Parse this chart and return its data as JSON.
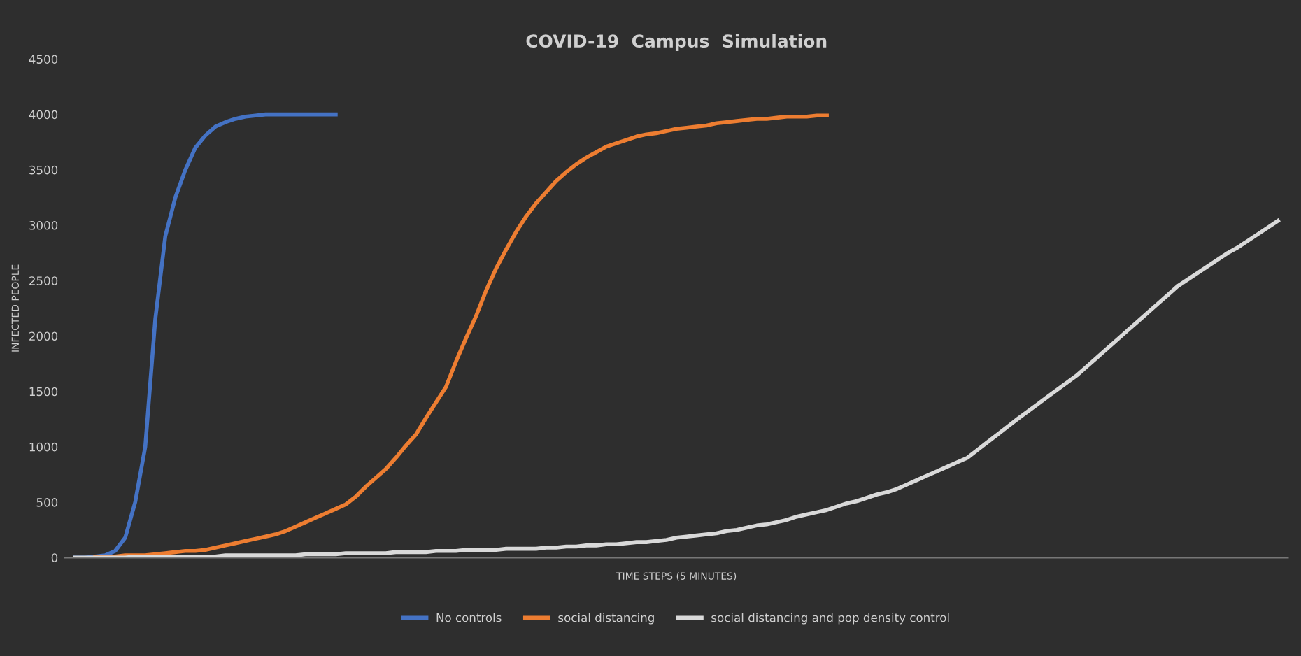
{
  "chart_data": {
    "type": "line",
    "title": "COVID-19  Campus  Simulation",
    "xlabel": "TIME STEPS (5 MINUTES)",
    "ylabel": "INFECTED PEOPLE",
    "categories": [
      null,
      null,
      null,
      null,
      null,
      null,
      null,
      null,
      null,
      null,
      null,
      null,
      null,
      null,
      null,
      null,
      null,
      null,
      null,
      null,
      null,
      null,
      null,
      null,
      null,
      null,
      null,
      null,
      null,
      null,
      null,
      null,
      null,
      null,
      null,
      null,
      null,
      null,
      null,
      null,
      null,
      null,
      null,
      null,
      null,
      null,
      null,
      null,
      null,
      null,
      null,
      null,
      null,
      null,
      null,
      null,
      null,
      null,
      null,
      null,
      null,
      null,
      null,
      null,
      null,
      null,
      null,
      null,
      null,
      null,
      null,
      null,
      null,
      null,
      null,
      null,
      null,
      null,
      null,
      null,
      null,
      null,
      null,
      null,
      null,
      null,
      null,
      null,
      null,
      null,
      null,
      null,
      null,
      null,
      null,
      null,
      null,
      null,
      null,
      null,
      null,
      null,
      null,
      null,
      null,
      null,
      null,
      null,
      null,
      null,
      null,
      null,
      null,
      null,
      null,
      null,
      null,
      null,
      null,
      null,
      null
    ],
    "series": [
      {
        "name": "No controls",
        "color": "#4472c4",
        "values": [
          0,
          0,
          10,
          20,
          60,
          180,
          500,
          1000,
          2150,
          2900,
          3250,
          3500,
          3700,
          3810,
          3890,
          3930,
          3960,
          3980,
          3990,
          4000,
          4000,
          4000,
          4000,
          4000,
          4000,
          4000,
          4000,
          null,
          null,
          null,
          null,
          null,
          null,
          null,
          null,
          null,
          null,
          null,
          null,
          null,
          null,
          null,
          null,
          null,
          null,
          null,
          null,
          null,
          null,
          null,
          null,
          null,
          null,
          null,
          null,
          null,
          null,
          null,
          null,
          null,
          null,
          null,
          null,
          null,
          null,
          null,
          null,
          null,
          null,
          null,
          null,
          null,
          null,
          null,
          null,
          null,
          null,
          null,
          null,
          null,
          null,
          null,
          null,
          null,
          null,
          null,
          null,
          null,
          null,
          null,
          null,
          null,
          null,
          null,
          null,
          null,
          null,
          null,
          null,
          null,
          null,
          null,
          null,
          null,
          null,
          null,
          null,
          null,
          null,
          null,
          null,
          null,
          null,
          null,
          null,
          null,
          null,
          null,
          null,
          null,
          null
        ]
      },
      {
        "name": "social distancing",
        "color": "#ed7d31",
        "values": [
          null,
          null,
          10,
          10,
          10,
          20,
          20,
          20,
          30,
          40,
          50,
          60,
          60,
          70,
          90,
          110,
          130,
          150,
          170,
          190,
          210,
          240,
          280,
          320,
          360,
          400,
          440,
          480,
          550,
          640,
          720,
          800,
          900,
          1010,
          1110,
          1260,
          1400,
          1540,
          1770,
          1980,
          2180,
          2410,
          2610,
          2780,
          2940,
          3080,
          3200,
          3300,
          3400,
          3480,
          3550,
          3610,
          3660,
          3710,
          3740,
          3770,
          3800,
          3820,
          3830,
          3850,
          3870,
          3880,
          3890,
          3900,
          3920,
          3930,
          3940,
          3950,
          3960,
          3960,
          3970,
          3980,
          3980,
          3980,
          3990,
          3990,
          null,
          null,
          null,
          null,
          null,
          null,
          null,
          null,
          null,
          null,
          null,
          null,
          null,
          null,
          null,
          null,
          null,
          null,
          null,
          null,
          null,
          null,
          null,
          null,
          null,
          null,
          null,
          null,
          null,
          null,
          null,
          null,
          null,
          null,
          null,
          null,
          null,
          null,
          null,
          null,
          null,
          null,
          null,
          null,
          null
        ]
      },
      {
        "name": "social distancing and pop density control",
        "color": "#d9d9d9",
        "values": [
          0,
          0,
          0,
          0,
          0,
          0,
          10,
          10,
          10,
          10,
          10,
          10,
          10,
          10,
          10,
          20,
          20,
          20,
          20,
          20,
          20,
          20,
          20,
          30,
          30,
          30,
          30,
          40,
          40,
          40,
          40,
          40,
          50,
          50,
          50,
          50,
          60,
          60,
          60,
          70,
          70,
          70,
          70,
          80,
          80,
          80,
          80,
          90,
          90,
          100,
          100,
          110,
          110,
          120,
          120,
          130,
          140,
          140,
          150,
          160,
          180,
          190,
          200,
          210,
          220,
          240,
          250,
          270,
          290,
          300,
          320,
          340,
          370,
          390,
          410,
          430,
          460,
          490,
          510,
          540,
          570,
          590,
          620,
          660,
          700,
          740,
          780,
          820,
          860,
          900,
          970,
          1040,
          1110,
          1180,
          1250,
          1317,
          1383,
          1450,
          1517,
          1583,
          1650,
          1730,
          1810,
          1890,
          1970,
          2050,
          2130,
          2210,
          2290,
          2370,
          2450,
          2510,
          2570,
          2630,
          2690,
          2750,
          2800,
          2860,
          2920,
          2980,
          3040
        ]
      }
    ],
    "ylim": [
      0,
      4500
    ],
    "yticks": [
      0,
      500,
      1000,
      1500,
      2000,
      2500,
      3000,
      3500,
      4000,
      4500
    ],
    "grid": false,
    "legend": "bottom",
    "marker": "none",
    "line_style": "solid"
  }
}
